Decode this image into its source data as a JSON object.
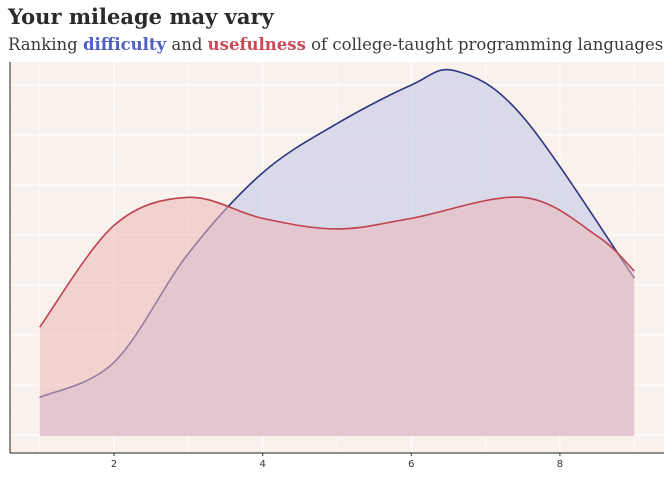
{
  "title": "Your mileage may vary",
  "subtitle": {
    "prefix": "Ranking ",
    "term1": "difficulty",
    "middle": " and ",
    "term2": "usefulness",
    "suffix": " of college-taught programming languages"
  },
  "colors": {
    "background": "#f8f1ec",
    "difficulty_line": "#2e3580",
    "difficulty_fill": "#c8cde8",
    "usefulness_line": "#c0414f",
    "usefulness_fill": "#edb8b8"
  },
  "chart_data": {
    "type": "area",
    "title": "Your mileage may vary",
    "xlabel": "",
    "ylabel": "",
    "xlim": [
      0.6,
      9.4
    ],
    "ylim": [
      0,
      1
    ],
    "xticks": [
      2,
      4,
      6,
      8
    ],
    "grid": true,
    "legend": "none",
    "series": [
      {
        "name": "difficulty",
        "x": [
          1.0,
          2.0,
          3.0,
          4.0,
          5.0,
          6.0,
          6.6,
          7.5,
          9.0
        ],
        "values": [
          0.11,
          0.21,
          0.52,
          0.75,
          0.89,
          1.0,
          1.04,
          0.91,
          0.45
        ]
      },
      {
        "name": "usefulness",
        "x": [
          1.0,
          2.0,
          3.0,
          4.0,
          5.0,
          6.0,
          7.5,
          8.5,
          9.0
        ],
        "values": [
          0.31,
          0.6,
          0.68,
          0.62,
          0.59,
          0.62,
          0.68,
          0.57,
          0.47
        ]
      }
    ]
  }
}
